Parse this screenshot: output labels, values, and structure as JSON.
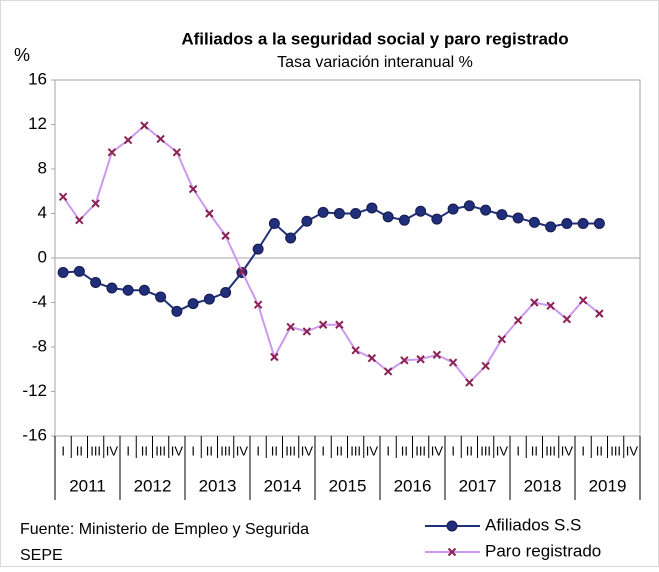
{
  "chart_data": {
    "type": "line",
    "title": "Afiliados a la seguridad social y paro registrado",
    "subtitle": "Tasa variación interanual %",
    "y_label": "%",
    "categories": [
      "I",
      "II",
      "III",
      "IV",
      "I",
      "II",
      "III",
      "IV",
      "I",
      "II",
      "III",
      "IV",
      "I",
      "II",
      "III",
      "IV",
      "I",
      "II",
      "III",
      "IV",
      "I",
      "II",
      "III",
      "IV",
      "I",
      "II",
      "III",
      "IV",
      "I",
      "II",
      "III",
      "IV",
      "I",
      "II",
      "III",
      "IV"
    ],
    "years": [
      "2011",
      "2012",
      "2013",
      "2014",
      "2015",
      "2016",
      "2017",
      "2018",
      "2019"
    ],
    "series": [
      {
        "name": "Afiliados S.S",
        "color": "#1f2f7a",
        "marker": "circle",
        "marker_color": "#1f2f7a",
        "values": [
          -1.3,
          -1.2,
          -2.2,
          -2.7,
          -2.9,
          -2.9,
          -3.5,
          -4.8,
          -4.1,
          -3.7,
          -3.1,
          -1.3,
          0.8,
          3.1,
          1.8,
          3.3,
          4.1,
          4.0,
          4.0,
          4.5,
          3.7,
          3.4,
          4.2,
          3.5,
          4.4,
          4.7,
          4.3,
          3.9,
          3.6,
          3.2,
          2.8,
          3.1,
          3.1,
          3.1,
          null,
          null
        ]
      },
      {
        "name": "Paro registrado",
        "color": "#cc99ee",
        "marker": "x",
        "marker_color": "#8b2252",
        "values": [
          5.5,
          3.4,
          4.9,
          9.5,
          10.6,
          11.9,
          10.7,
          9.5,
          6.2,
          4.0,
          2.0,
          -1.2,
          -4.2,
          -8.9,
          -6.2,
          -6.6,
          -6.0,
          -6.0,
          -8.3,
          -9.0,
          -10.2,
          -9.2,
          -9.1,
          -8.7,
          -9.4,
          -11.2,
          -9.7,
          -7.3,
          -5.6,
          -4.0,
          -4.3,
          -5.5,
          -3.8,
          -5.0,
          null,
          null
        ]
      }
    ],
    "ylim": [
      -16,
      16
    ],
    "yticks": [
      -16,
      -12,
      -8,
      -4,
      0,
      4,
      8,
      12,
      16
    ],
    "zero_line": true,
    "source": [
      "Fuente: Ministerio de Empleo y Segurida",
      "SEPE"
    ],
    "legend": "bottom-right"
  }
}
